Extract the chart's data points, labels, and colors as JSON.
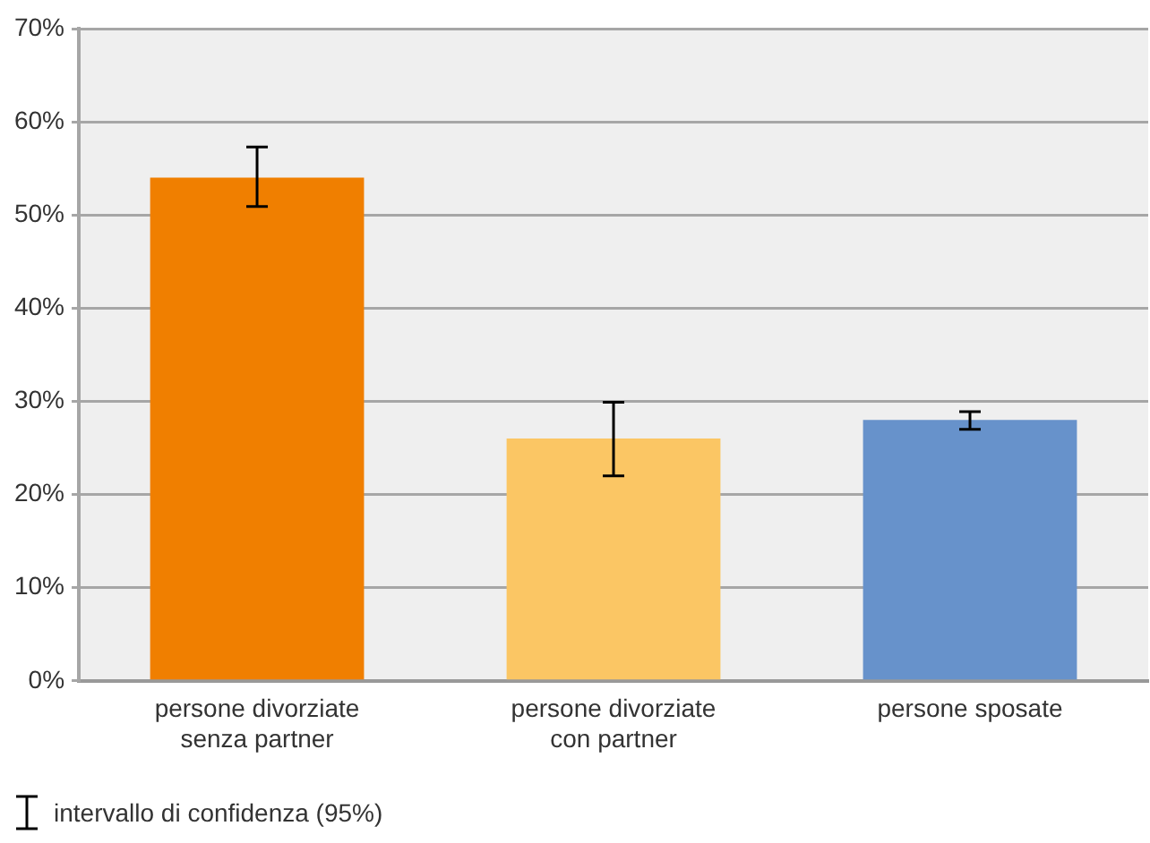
{
  "chart_data": {
    "type": "bar",
    "categories": [
      "persone divorziate senza partner",
      "persone divorziate con partner",
      "persone sposate"
    ],
    "values": [
      54,
      26,
      28
    ],
    "colors": [
      "#f07f00",
      "#fbc664",
      "#6792cb"
    ],
    "errors": [
      [
        50.9,
        57.3
      ],
      [
        22,
        29.9
      ],
      [
        27,
        28.9
      ]
    ],
    "ylim": [
      0,
      70
    ],
    "yticks": [
      {
        "value": 0,
        "label": "0%"
      },
      {
        "value": 10,
        "label": "10%"
      },
      {
        "value": 20,
        "label": "20%"
      },
      {
        "value": 30,
        "label": "30%"
      },
      {
        "value": 40,
        "label": "40%"
      },
      {
        "value": 50,
        "label": "50%"
      },
      {
        "value": 60,
        "label": "60%"
      },
      {
        "value": 70,
        "label": "70%"
      }
    ],
    "grid": "y",
    "legend": false,
    "annotations": [
      "intervallo di confidenza (95%)"
    ]
  }
}
